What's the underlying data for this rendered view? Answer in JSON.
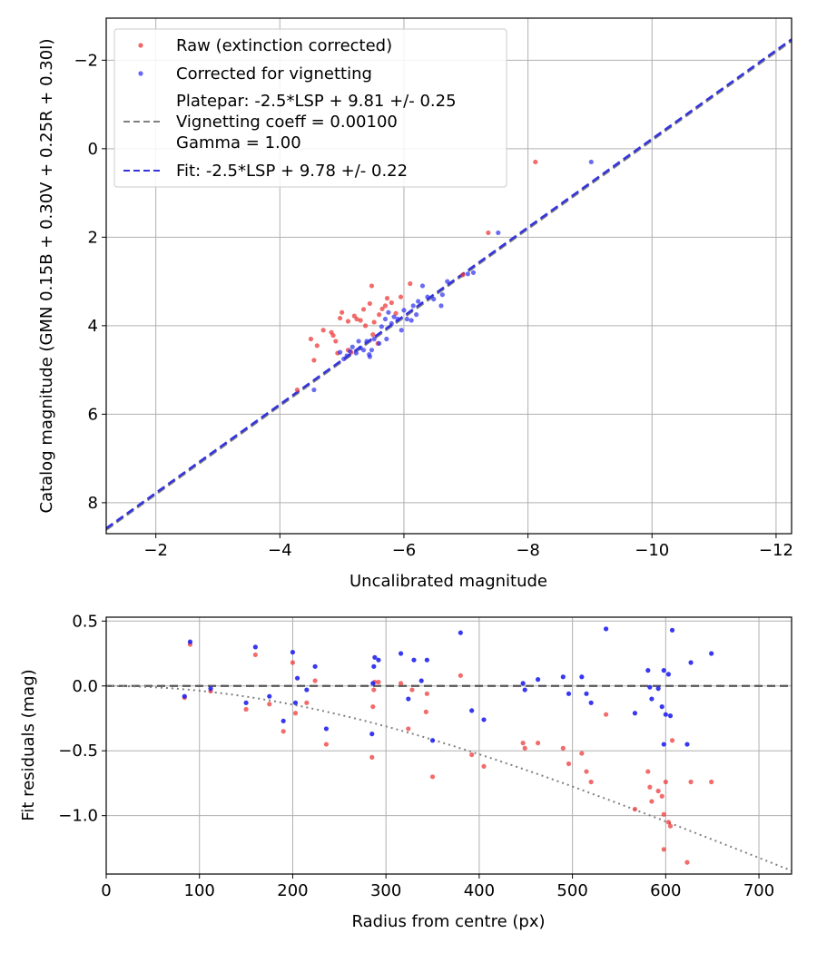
{
  "chart_data": [
    {
      "type": "scatter",
      "xlabel": "Uncalibrated magnitude",
      "ylabel": "Catalog magnitude (GMN 0.15B + 0.30V + 0.25R + 0.30I)",
      "xlim": [
        -1.2,
        -12.25
      ],
      "ylim": [
        8.7,
        -2.95
      ],
      "x_inverted": true,
      "y_inverted": true,
      "xticks": [
        -2,
        -4,
        -6,
        -8,
        -10,
        -12
      ],
      "xtick_labels": [
        "−2",
        "−4",
        "−6",
        "−8",
        "−10",
        "−12"
      ],
      "yticks": [
        -2,
        0,
        2,
        4,
        6,
        8
      ],
      "ytick_labels": [
        "−2",
        "0",
        "2",
        "4",
        "6",
        "8"
      ],
      "grid": true,
      "legend_position": "upper-left",
      "lines": [
        {
          "name": "Platepar: -2.5*LSP + 9.81 +/- 0.25\nVignetting coeff = 0.00100\nGamma = 1.00",
          "label_lines": [
            "Platepar: -2.5*LSP + 9.81 +/- 0.25",
            "Vignetting coeff = 0.00100",
            "Gamma = 1.00"
          ],
          "slope": 1.0,
          "intercept": 9.81,
          "color": "#808080",
          "style": "dashed"
        },
        {
          "name": "Fit: -2.5*LSP + 9.78 +/- 0.22",
          "label_lines": [
            "Fit: -2.5*LSP + 9.78 +/- 0.22"
          ],
          "slope": 1.0,
          "intercept": 9.78,
          "color": "#3333dd",
          "style": "dashed"
        }
      ],
      "series": [
        {
          "name": "Raw (extinction corrected)",
          "color": "#ee3333",
          "points": [
            [
              -8.12,
              0.3
            ],
            [
              -7.36,
              1.9
            ],
            [
              -6.95,
              2.85
            ],
            [
              -4.28,
              5.45
            ],
            [
              -4.55,
              4.78
            ],
            [
              -4.6,
              4.45
            ],
            [
              -4.5,
              4.3
            ],
            [
              -4.7,
              4.1
            ],
            [
              -4.83,
              4.15
            ],
            [
              -4.86,
              4.22
            ],
            [
              -4.9,
              4.35
            ],
            [
              -4.93,
              4.62
            ],
            [
              -4.97,
              3.83
            ],
            [
              -5.0,
              3.7
            ],
            [
              -5.1,
              3.9
            ],
            [
              -5.2,
              3.78
            ],
            [
              -5.15,
              4.6
            ],
            [
              -5.24,
              3.85
            ],
            [
              -5.3,
              3.88
            ],
            [
              -5.35,
              3.63
            ],
            [
              -5.38,
              4.0
            ],
            [
              -5.45,
              3.5
            ],
            [
              -5.48,
              3.1
            ],
            [
              -5.52,
              3.92
            ],
            [
              -5.58,
              4.4
            ],
            [
              -5.6,
              3.75
            ],
            [
              -5.65,
              3.62
            ],
            [
              -5.7,
              3.55
            ],
            [
              -5.73,
              3.38
            ],
            [
              -5.8,
              3.48
            ],
            [
              -5.87,
              3.72
            ],
            [
              -5.95,
              3.35
            ],
            [
              -6.1,
              3.05
            ],
            [
              -5.1,
              4.55
            ],
            [
              -5.5,
              4.2
            ]
          ]
        },
        {
          "name": "Corrected for vignetting",
          "color": "#3333ee",
          "points": [
            [
              -9.02,
              0.3
            ],
            [
              -7.52,
              1.9
            ],
            [
              -7.12,
              2.8
            ],
            [
              -7.03,
              2.83
            ],
            [
              -6.7,
              3.0
            ],
            [
              -6.62,
              3.3
            ],
            [
              -6.6,
              3.55
            ],
            [
              -6.48,
              3.4
            ],
            [
              -6.38,
              3.35
            ],
            [
              -6.3,
              3.1
            ],
            [
              -6.23,
              3.45
            ],
            [
              -6.2,
              3.75
            ],
            [
              -6.15,
              3.55
            ],
            [
              -6.12,
              3.88
            ],
            [
              -6.05,
              3.85
            ],
            [
              -6.0,
              3.65
            ],
            [
              -5.96,
              4.1
            ],
            [
              -5.9,
              3.85
            ],
            [
              -5.84,
              3.8
            ],
            [
              -5.8,
              3.95
            ],
            [
              -5.75,
              3.7
            ],
            [
              -5.72,
              4.3
            ],
            [
              -5.7,
              3.85
            ],
            [
              -5.64,
              4.02
            ],
            [
              -5.6,
              4.4
            ],
            [
              -5.52,
              4.3
            ],
            [
              -5.48,
              4.55
            ],
            [
              -5.44,
              4.65
            ],
            [
              -5.4,
              4.35
            ],
            [
              -5.35,
              4.55
            ],
            [
              -5.3,
              4.5
            ],
            [
              -5.27,
              4.35
            ],
            [
              -5.23,
              4.62
            ],
            [
              -5.17,
              4.48
            ],
            [
              -5.13,
              4.58
            ],
            [
              -5.08,
              4.68
            ],
            [
              -5.03,
              4.75
            ],
            [
              -4.97,
              4.6
            ],
            [
              -5.45,
              4.7
            ],
            [
              -4.55,
              5.45
            ]
          ]
        }
      ]
    },
    {
      "type": "scatter",
      "xlabel": "Radius from centre (px)",
      "ylabel": "Fit residuals (mag)",
      "xlim": [
        0,
        735
      ],
      "ylim": [
        -1.45,
        0.53
      ],
      "xticks": [
        0,
        100,
        200,
        300,
        400,
        500,
        600,
        700
      ],
      "xtick_labels": [
        "0",
        "100",
        "200",
        "300",
        "400",
        "500",
        "600",
        "700"
      ],
      "yticks": [
        0.5,
        0.0,
        -0.5,
        -1.0
      ],
      "ytick_labels": [
        "0.5",
        "0.0",
        "−0.5",
        "−1.0"
      ],
      "grid": true,
      "reference_line": {
        "y": 0.0,
        "color": "#555555",
        "style": "dashed"
      },
      "vignetting_curve": {
        "coeff": 0.001,
        "color": "#808080",
        "style": "dotted"
      },
      "series": [
        {
          "name": "Raw (extinction corrected)",
          "color": "#ee3333",
          "points": [
            [
              84,
              -0.09
            ],
            [
              90,
              0.32
            ],
            [
              112,
              -0.04
            ],
            [
              150,
              -0.18
            ],
            [
              160,
              0.24
            ],
            [
              175,
              -0.14
            ],
            [
              190,
              -0.35
            ],
            [
              200,
              0.18
            ],
            [
              203,
              -0.21
            ],
            [
              215,
              -0.13
            ],
            [
              224,
              0.04
            ],
            [
              236,
              -0.45
            ],
            [
              285,
              -0.55
            ],
            [
              286,
              -0.16
            ],
            [
              287,
              -0.03
            ],
            [
              288,
              0.03
            ],
            [
              292,
              0.03
            ],
            [
              316,
              0.02
            ],
            [
              324,
              -0.33
            ],
            [
              328,
              -0.03
            ],
            [
              343,
              -0.2
            ],
            [
              344,
              -0.06
            ],
            [
              350,
              -0.7
            ],
            [
              380,
              0.08
            ],
            [
              392,
              -0.53
            ],
            [
              405,
              -0.62
            ],
            [
              447,
              -0.44
            ],
            [
              449,
              -0.48
            ],
            [
              463,
              -0.44
            ],
            [
              490,
              -0.48
            ],
            [
              496,
              -0.6
            ],
            [
              510,
              -0.52
            ],
            [
              515,
              -0.66
            ],
            [
              520,
              -0.74
            ],
            [
              536,
              -0.22
            ],
            [
              567,
              -0.95
            ],
            [
              581,
              -0.66
            ],
            [
              583,
              -0.78
            ],
            [
              585,
              -0.89
            ],
            [
              592,
              -0.81
            ],
            [
              596,
              -0.85
            ],
            [
              598,
              -0.99
            ],
            [
              598,
              -1.26
            ],
            [
              600,
              -0.74
            ],
            [
              603,
              -1.05
            ],
            [
              605,
              -1.08
            ],
            [
              607,
              -0.42
            ],
            [
              623,
              -1.36
            ],
            [
              627,
              -0.74
            ],
            [
              649,
              -0.74
            ]
          ]
        },
        {
          "name": "Corrected for vignetting",
          "color": "#2222ee",
          "points": [
            [
              84,
              -0.08
            ],
            [
              90,
              0.34
            ],
            [
              112,
              -0.02
            ],
            [
              150,
              -0.13
            ],
            [
              160,
              0.3
            ],
            [
              175,
              -0.08
            ],
            [
              190,
              -0.27
            ],
            [
              200,
              0.26
            ],
            [
              203,
              -0.13
            ],
            [
              205,
              0.06
            ],
            [
              215,
              -0.03
            ],
            [
              224,
              0.15
            ],
            [
              236,
              -0.33
            ],
            [
              285,
              -0.37
            ],
            [
              286,
              0.02
            ],
            [
              287,
              0.15
            ],
            [
              288,
              0.22
            ],
            [
              292,
              0.2
            ],
            [
              316,
              0.25
            ],
            [
              324,
              -0.1
            ],
            [
              330,
              0.2
            ],
            [
              338,
              0.04
            ],
            [
              344,
              0.2
            ],
            [
              350,
              -0.42
            ],
            [
              380,
              0.41
            ],
            [
              392,
              -0.19
            ],
            [
              405,
              -0.26
            ],
            [
              447,
              0.02
            ],
            [
              449,
              -0.03
            ],
            [
              463,
              0.05
            ],
            [
              490,
              0.07
            ],
            [
              496,
              -0.06
            ],
            [
              510,
              0.07
            ],
            [
              515,
              -0.06
            ],
            [
              520,
              -0.13
            ],
            [
              536,
              0.44
            ],
            [
              567,
              -0.21
            ],
            [
              581,
              0.12
            ],
            [
              583,
              -0.01
            ],
            [
              585,
              -0.1
            ],
            [
              592,
              -0.02
            ],
            [
              596,
              -0.16
            ],
            [
              598,
              -0.45
            ],
            [
              598,
              0.12
            ],
            [
              600,
              -0.22
            ],
            [
              603,
              0.09
            ],
            [
              605,
              -0.23
            ],
            [
              607,
              0.43
            ],
            [
              623,
              -0.45
            ],
            [
              627,
              0.18
            ],
            [
              649,
              0.25
            ]
          ]
        }
      ]
    }
  ]
}
